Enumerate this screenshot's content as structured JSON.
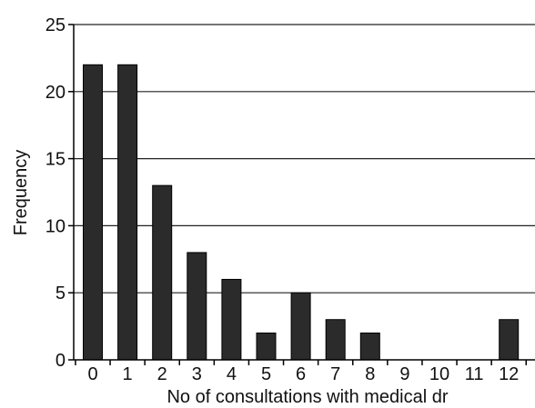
{
  "chart_data": {
    "type": "bar",
    "categories": [
      "0",
      "1",
      "2",
      "3",
      "4",
      "5",
      "6",
      "7",
      "8",
      "9",
      "10",
      "11",
      "12"
    ],
    "values": [
      22,
      22,
      13,
      8,
      6,
      2,
      5,
      3,
      2,
      0,
      0,
      0,
      3
    ],
    "xlabel": "No of consultations with medical dr",
    "ylabel": "Frequency",
    "ylim": [
      0,
      25
    ],
    "yticks": [
      "0",
      "5",
      "10",
      "15",
      "20",
      "25"
    ],
    "grid": true,
    "colors": {
      "bar": "#2b2b2b",
      "bar_edge": "#000000",
      "grid": "#222222",
      "axis": "#000000"
    }
  }
}
